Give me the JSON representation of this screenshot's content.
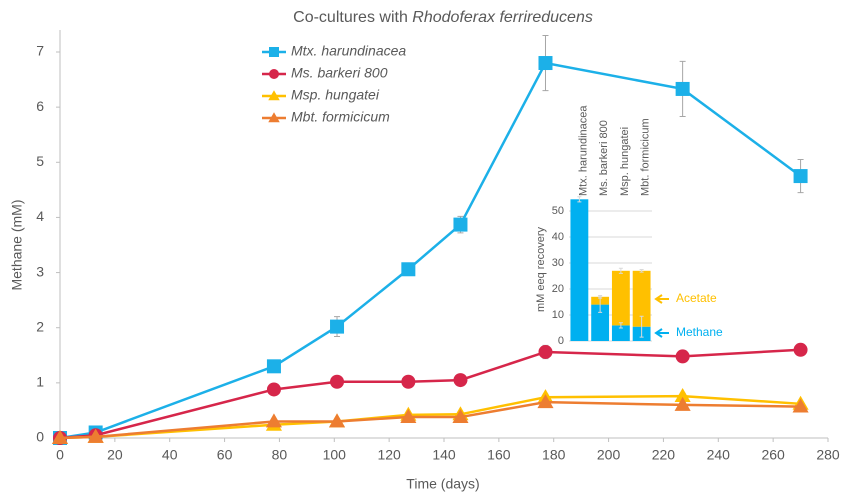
{
  "chart_data": [
    {
      "type": "line",
      "title": [
        "Co-cultures with",
        "Rhodoferax ferrireducens"
      ],
      "x_label": "Time (days)",
      "y_label": "Methane (mM)",
      "x": [
        0,
        13,
        78,
        101,
        127,
        146,
        177,
        227,
        270
      ],
      "xlim": [
        0,
        280
      ],
      "xticks": [
        0,
        20,
        40,
        60,
        80,
        100,
        120,
        140,
        160,
        180,
        200,
        220,
        240,
        260,
        280
      ],
      "ylim": [
        0,
        7
      ],
      "yticks": [
        0,
        1,
        2,
        3,
        4,
        5,
        6,
        7
      ],
      "series": [
        {
          "name": "Mtx. harundinacea",
          "color": "#1cb0e8",
          "marker": "square",
          "values": [
            0,
            0.1,
            1.3,
            2.02,
            3.06,
            3.87,
            6.8,
            6.33,
            4.75
          ],
          "errors": [
            0.05,
            0.05,
            0.08,
            0.18,
            0.1,
            0.15,
            0.5,
            0.5,
            0.3
          ]
        },
        {
          "name": "Ms. barkeri 800",
          "color": "#d6264a",
          "marker": "circle",
          "values": [
            0,
            0.05,
            0.88,
            1.02,
            1.02,
            1.05,
            1.56,
            1.48,
            1.6
          ],
          "errors": [
            0.02,
            0.02,
            0.05,
            0.05,
            0.05,
            0.05,
            0.12,
            0.05,
            0.05
          ]
        },
        {
          "name": "Msp. hungatei",
          "color": "#ffc000",
          "marker": "triangle",
          "values": [
            0,
            0.02,
            0.24,
            0.3,
            0.42,
            0.43,
            0.74,
            0.76,
            0.62
          ],
          "errors": [
            0.02,
            0.02,
            0.03,
            0.03,
            0.03,
            0.03,
            0.05,
            0.05,
            0.04
          ]
        },
        {
          "name": "Mbt. formicicum",
          "color": "#ed7d31",
          "marker": "triangle",
          "values": [
            0,
            0.02,
            0.3,
            0.3,
            0.38,
            0.38,
            0.65,
            0.6,
            0.57
          ],
          "errors": [
            0.02,
            0.02,
            0.03,
            0.03,
            0.03,
            0.03,
            0.05,
            0.05,
            0.04
          ]
        }
      ]
    },
    {
      "type": "stacked-bar",
      "y_label": "mM eeq recovery",
      "categories": [
        "Mtx. harundinacea",
        "Ms. barkeri 800",
        "Msp. hungatei",
        "Mbt. formicicum"
      ],
      "ylim": [
        0,
        55
      ],
      "yticks": [
        0,
        10,
        20,
        30,
        40,
        50
      ],
      "grid": true,
      "series": [
        {
          "name": "Methane",
          "color": "#00b0f0",
          "values": [
            54.5,
            14,
            6,
            5.5
          ],
          "errors": [
            1,
            3,
            1,
            4
          ]
        },
        {
          "name": "Acetate",
          "color": "#ffc000",
          "values": [
            0,
            3,
            21,
            21.5
          ],
          "errors": [
            0,
            0.5,
            1,
            0.5
          ]
        }
      ]
    }
  ]
}
